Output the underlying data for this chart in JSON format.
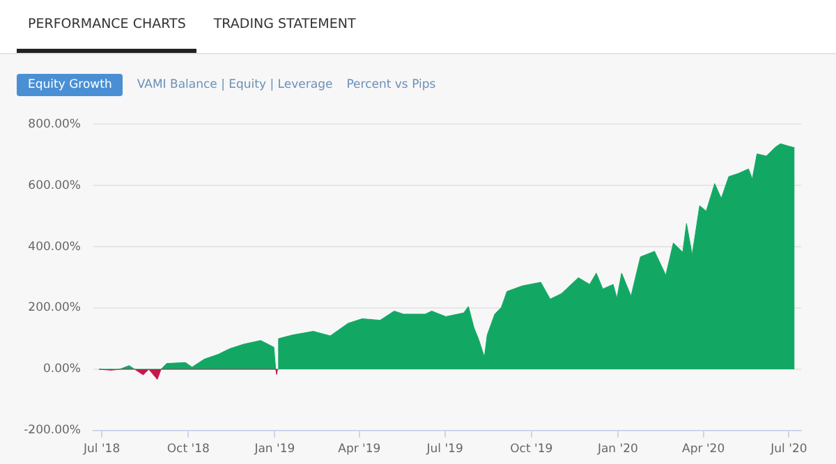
{
  "chart_data": {
    "type": "area",
    "annotations": [
      "PERFORMANCE CHARTS",
      "TRADING STATEMENT",
      "Equity Growth",
      "VAMI Balance | Equity | Leverage",
      "Percent vs Pips"
    ],
    "series": [
      {
        "color": "#c8174a",
        "x": [
          "2018-06-28",
          "2018-07-11",
          "2018-07-20",
          "2018-08-05",
          "2018-08-14",
          "2018-08-20",
          "2018-08-29",
          "2018-09-02",
          "2019-01-02",
          "2019-01-03",
          "2019-01-04"
        ],
        "values": [
          0,
          -3,
          0,
          0,
          -18,
          0,
          -33,
          0,
          0,
          -17,
          0
        ]
      },
      {
        "color": "#12a864",
        "x": [
          "2018-06-28",
          "2018-07-20",
          "2018-07-30",
          "2018-08-05",
          "2018-09-02",
          "2018-09-08",
          "2018-09-28",
          "2018-10-05",
          "2018-10-18",
          "2018-11-02",
          "2018-11-14",
          "2018-11-29",
          "2018-12-17",
          "2018-12-31",
          "2019-01-02",
          "2019-01-04",
          "2019-01-05",
          "2019-01-20",
          "2019-02-11",
          "2019-03-01",
          "2019-03-20",
          "2019-04-04",
          "2019-04-23",
          "2019-05-08",
          "2019-05-18",
          "2019-06-10",
          "2019-06-17",
          "2019-07-02",
          "2019-07-21",
          "2019-07-26",
          "2019-08-01",
          "2019-08-06",
          "2019-08-12",
          "2019-08-15",
          "2019-08-23",
          "2019-08-30",
          "2019-09-05",
          "2019-09-21",
          "2019-10-11",
          "2019-10-21",
          "2019-11-02",
          "2019-11-20",
          "2019-12-02",
          "2019-12-09",
          "2019-12-16",
          "2019-12-27",
          "2019-12-31",
          "2020-01-05",
          "2020-01-15",
          "2020-01-25",
          "2020-02-09",
          "2020-02-21",
          "2020-02-29",
          "2020-03-10",
          "2020-03-14",
          "2020-03-20",
          "2020-03-28",
          "2020-04-04",
          "2020-04-13",
          "2020-04-20",
          "2020-04-28",
          "2020-05-08",
          "2020-05-19",
          "2020-05-23",
          "2020-05-28",
          "2020-06-07",
          "2020-06-17",
          "2020-06-22",
          "2020-06-30",
          "2020-07-07"
        ],
        "values": [
          0,
          0,
          12,
          0,
          0,
          19,
          22,
          7,
          33,
          49,
          67,
          82,
          94,
          72,
          0,
          0,
          100,
          112,
          124,
          109,
          150,
          165,
          160,
          190,
          180,
          180,
          190,
          172,
          184,
          205,
          135,
          97,
          40,
          112,
          180,
          202,
          254,
          272,
          284,
          229,
          247,
          299,
          277,
          314,
          262,
          277,
          232,
          314,
          239,
          367,
          385,
          307,
          412,
          382,
          476,
          374,
          534,
          516,
          606,
          558,
          629,
          639,
          654,
          621,
          703,
          696,
          726,
          736,
          729,
          723
        ]
      }
    ],
    "xlim": [
      "2018-06-22",
      "2020-07-14"
    ],
    "xticks": [
      {
        "value": "2018-07-01",
        "label": "Jul '18"
      },
      {
        "value": "2018-10-01",
        "label": "Oct '18"
      },
      {
        "value": "2019-01-01",
        "label": "Jan '19"
      },
      {
        "value": "2019-04-01",
        "label": "Apr '19"
      },
      {
        "value": "2019-07-01",
        "label": "Jul '19"
      },
      {
        "value": "2019-10-01",
        "label": "Oct '19"
      },
      {
        "value": "2020-01-01",
        "label": "Jan '20"
      },
      {
        "value": "2020-04-01",
        "label": "Apr '20"
      },
      {
        "value": "2020-07-01",
        "label": "Jul '20"
      }
    ],
    "ylim": [
      -200,
      800
    ],
    "yticks": [
      {
        "value": -200,
        "label": "-200.00%"
      },
      {
        "value": 0,
        "label": "0.00%"
      },
      {
        "value": 200,
        "label": "200.00%"
      },
      {
        "value": 400,
        "label": "400.00%"
      },
      {
        "value": 600,
        "label": "600.00%"
      },
      {
        "value": 800,
        "label": "800.00%"
      }
    ],
    "grid": "y",
    "legend": false
  }
}
